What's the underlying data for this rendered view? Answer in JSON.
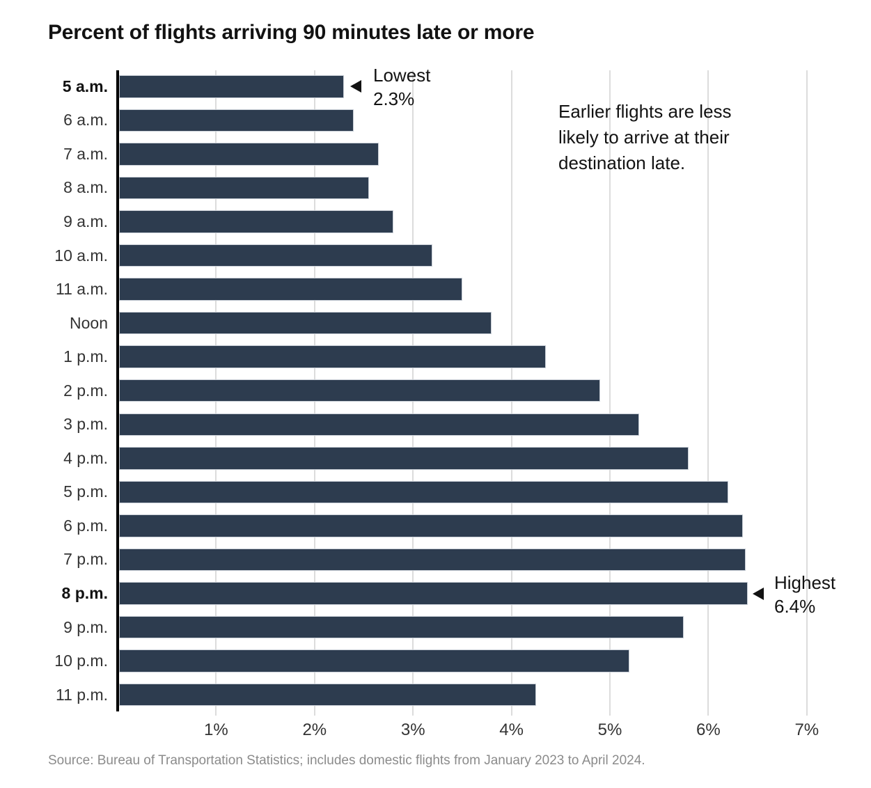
{
  "source": "Source: Bureau of Transportation Statistics; includes domestic flights from January 2023 to April 2024.",
  "note_lines": [
    "Earlier flights are less",
    "likely to arrive at their",
    "destination late."
  ],
  "colors": {
    "bar": "#2d3c4f",
    "grid": "#dcdcdc",
    "axis": "#000000",
    "text": "#121212",
    "muted_text": "#333333",
    "source_text": "#8b8b8b"
  },
  "chart_data": {
    "type": "bar",
    "orientation": "horizontal",
    "title": "Percent of flights arriving 90 minutes late or more",
    "note": "Earlier flights are less likely to arrive at their destination late.",
    "categories": [
      "5 a.m.",
      "6 a.m.",
      "7 a.m.",
      "8 a.m.",
      "9 a.m.",
      "10 a.m.",
      "11 a.m.",
      "Noon",
      "1 p.m.",
      "2 p.m.",
      "3 p.m.",
      "4 p.m.",
      "5 p.m.",
      "6 p.m.",
      "7 p.m.",
      "8 p.m.",
      "9 p.m.",
      "10 p.m.",
      "11 p.m."
    ],
    "values": [
      2.3,
      2.4,
      2.65,
      2.55,
      2.8,
      3.2,
      3.5,
      3.8,
      4.35,
      4.9,
      5.3,
      5.8,
      6.2,
      6.35,
      6.38,
      6.4,
      5.75,
      5.2,
      4.25
    ],
    "unit": "%",
    "emphasized_categories": [
      "5 a.m.",
      "8 p.m."
    ],
    "x_ticks": [
      "1%",
      "2%",
      "3%",
      "4%",
      "5%",
      "6%",
      "7%"
    ],
    "xlim": [
      0,
      7.3
    ],
    "grid": "vertical",
    "legend": "none",
    "xlabel": "",
    "ylabel": "",
    "annotations": [
      {
        "target": "5 a.m.",
        "label": "Lowest",
        "value": "2.3%"
      },
      {
        "target": "8 p.m.",
        "label": "Highest",
        "value": "6.4%"
      }
    ]
  }
}
